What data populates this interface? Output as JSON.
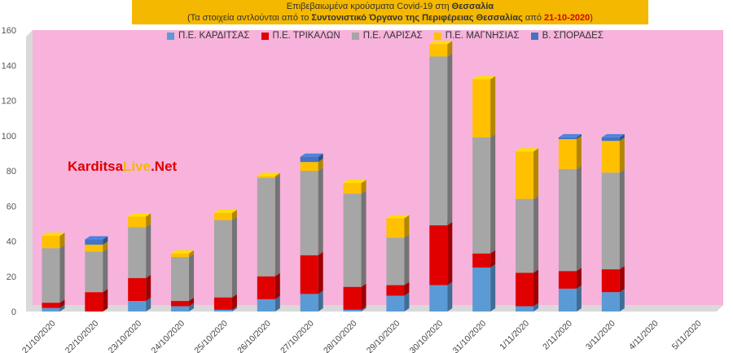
{
  "title": {
    "line1_prefix": "Επιβεβαιωμένα κρούσματα Covid-19 στη ",
    "line1_bold": "Θεσσαλία",
    "line2_prefix": "(Τα στοιχεία αντλούνται από το ",
    "line2_bold": "Συντονιστικό Όργανο της Περιφέρειας Θεσσαλίας",
    "line2_mid": " από ",
    "line2_date": "21-10-2020",
    "line2_suffix": ")"
  },
  "watermark": {
    "part1": "Karditsa",
    "part2": "Live",
    "part3": ".Net"
  },
  "colors": {
    "background": "#f7b3dc",
    "karditsa": "#5b9bd5",
    "trikala": "#e00000",
    "larisa": "#a6a6a6",
    "magnisia": "#ffc000",
    "sporades": "#4472c4"
  },
  "chart_data": {
    "type": "bar",
    "stacked": true,
    "categories": [
      "21/10/2020",
      "22/10/2020",
      "23/10/2020",
      "24/10/2020",
      "25/10/2020",
      "26/10/2020",
      "27/10/2020",
      "28/10/2020",
      "29/10/2020",
      "30/10/2020",
      "31/10/2020",
      "1/11/2020",
      "2/11/2020",
      "3/11/2020",
      "4/11/2020",
      "5/11/2020"
    ],
    "series": [
      {
        "name": "Π.Ε. ΚΑΡΔΙΤΣΑΣ",
        "color": "#5b9bd5",
        "values": [
          2,
          0,
          6,
          3,
          1,
          7,
          10,
          1,
          9,
          15,
          25,
          3,
          13,
          11,
          0,
          0
        ]
      },
      {
        "name": "Π.Ε. ΤΡΙΚΑΛΩΝ",
        "color": "#e00000",
        "values": [
          3,
          11,
          13,
          3,
          7,
          13,
          22,
          13,
          6,
          34,
          8,
          19,
          10,
          13,
          0,
          0
        ]
      },
      {
        "name": "Π.Ε. ΛΑΡΙΣΑΣ",
        "color": "#a6a6a6",
        "values": [
          31,
          23,
          29,
          25,
          44,
          56,
          48,
          53,
          27,
          96,
          66,
          42,
          58,
          55,
          0,
          0
        ]
      },
      {
        "name": "Π.Ε. ΜΑΓΝΗΣΙΑΣ",
        "color": "#ffc000",
        "values": [
          7,
          4,
          6,
          2,
          4,
          1,
          5,
          6,
          11,
          7,
          33,
          27,
          17,
          18,
          0,
          0
        ]
      },
      {
        "name": "Β. ΣΠΟΡΑΔΕΣ",
        "color": "#4472c4",
        "values": [
          0,
          3,
          0,
          0,
          0,
          0,
          3,
          0,
          0,
          0,
          0,
          0,
          1,
          2,
          0,
          0
        ]
      }
    ],
    "ylim": [
      0,
      160
    ],
    "yticks": [
      "0",
      "20",
      "40",
      "60",
      "80",
      "100",
      "120",
      "140",
      "160"
    ],
    "legend_position": "top",
    "grid": false
  }
}
